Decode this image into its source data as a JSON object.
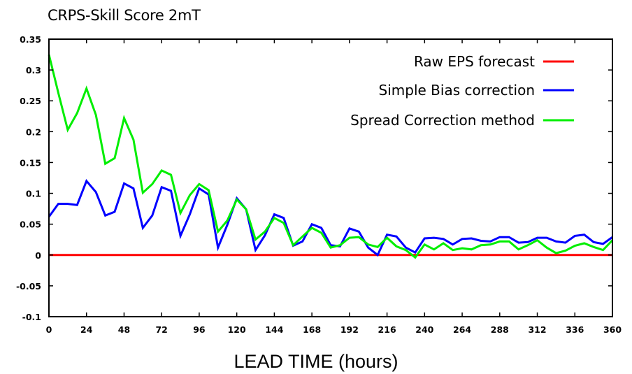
{
  "chart_data": {
    "type": "line",
    "title": "CRPS-Skill Score 2mT",
    "xlabel": "LEAD TIME (hours)",
    "ylabel": "",
    "xlim": [
      0,
      360
    ],
    "ylim": [
      -0.1,
      0.35
    ],
    "xticks": [
      0,
      24,
      48,
      72,
      96,
      120,
      144,
      168,
      192,
      216,
      240,
      264,
      288,
      312,
      336,
      360
    ],
    "yticks": [
      -0.1,
      -0.05,
      0,
      0.05,
      0.1,
      0.15,
      0.2,
      0.25,
      0.3,
      0.35
    ],
    "ytick_labels": [
      "-0.1",
      "-0.05",
      "0",
      "0.05",
      "0.1",
      "0.15",
      "0.2",
      "0.25",
      "0.3",
      "0.35"
    ],
    "legend_position": "top-right",
    "grid": false,
    "series": [
      {
        "name": "Raw EPS forecast",
        "color": "#ff0000",
        "x": [
          0,
          360
        ],
        "values": [
          0,
          0
        ]
      },
      {
        "name": "Simple Bias correction",
        "color": "#0000ff",
        "x": [
          0,
          6,
          12,
          18,
          24,
          30,
          36,
          42,
          48,
          54,
          60,
          66,
          72,
          78,
          84,
          90,
          96,
          102,
          108,
          114,
          120,
          126,
          132,
          138,
          144,
          150,
          156,
          162,
          168,
          174,
          180,
          186,
          192,
          198,
          204,
          210,
          216,
          222,
          228,
          234,
          240,
          246,
          252,
          258,
          264,
          270,
          276,
          282,
          288,
          294,
          300,
          306,
          312,
          318,
          324,
          330,
          336,
          342,
          348,
          354,
          360
        ],
        "values": [
          0.062,
          0.083,
          0.083,
          0.081,
          0.12,
          0.102,
          0.064,
          0.07,
          0.116,
          0.108,
          0.044,
          0.064,
          0.11,
          0.104,
          0.031,
          0.066,
          0.108,
          0.098,
          0.012,
          0.049,
          0.092,
          0.074,
          0.008,
          0.032,
          0.066,
          0.06,
          0.015,
          0.022,
          0.05,
          0.044,
          0.016,
          0.014,
          0.043,
          0.038,
          0.012,
          0.0,
          0.033,
          0.03,
          0.012,
          0.004,
          0.027,
          0.028,
          0.026,
          0.017,
          0.026,
          0.027,
          0.023,
          0.022,
          0.029,
          0.029,
          0.02,
          0.021,
          0.028,
          0.028,
          0.022,
          0.02,
          0.031,
          0.033,
          0.021,
          0.018,
          0.029
        ]
      },
      {
        "name": "Spread Correction method",
        "color": "#00ee00",
        "x": [
          0,
          6,
          12,
          18,
          24,
          30,
          36,
          42,
          48,
          54,
          60,
          66,
          72,
          78,
          84,
          90,
          96,
          102,
          108,
          114,
          120,
          126,
          132,
          138,
          144,
          150,
          156,
          162,
          168,
          174,
          180,
          186,
          192,
          198,
          204,
          210,
          216,
          222,
          228,
          234,
          240,
          246,
          252,
          258,
          264,
          270,
          276,
          282,
          288,
          294,
          300,
          306,
          312,
          318,
          324,
          330,
          336,
          342,
          348,
          354,
          360
        ],
        "values": [
          0.325,
          0.263,
          0.203,
          0.23,
          0.27,
          0.227,
          0.148,
          0.157,
          0.222,
          0.187,
          0.101,
          0.115,
          0.137,
          0.13,
          0.068,
          0.097,
          0.115,
          0.105,
          0.038,
          0.056,
          0.09,
          0.074,
          0.025,
          0.038,
          0.06,
          0.052,
          0.016,
          0.03,
          0.044,
          0.036,
          0.012,
          0.016,
          0.028,
          0.029,
          0.017,
          0.013,
          0.028,
          0.014,
          0.008,
          -0.004,
          0.017,
          0.009,
          0.019,
          0.008,
          0.011,
          0.009,
          0.016,
          0.017,
          0.022,
          0.022,
          0.009,
          0.016,
          0.024,
          0.012,
          0.003,
          0.007,
          0.015,
          0.019,
          0.013,
          0.008,
          0.024
        ]
      }
    ]
  }
}
